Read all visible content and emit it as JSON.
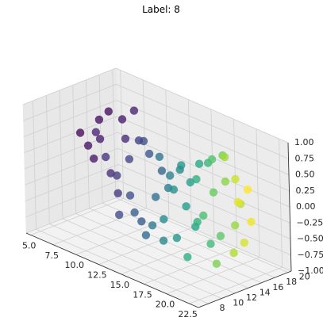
{
  "chart_data": {
    "type": "scatter",
    "projection": "3d",
    "title": "Label: 8",
    "xlabel": "",
    "ylabel": "",
    "zlabel": "",
    "xlim": [
      4.5,
      23.5
    ],
    "ylim": [
      6.5,
      20.5
    ],
    "zlim": [
      -1.0,
      1.0
    ],
    "xticks": [
      "5.0",
      "7.5",
      "10.0",
      "12.5",
      "15.0",
      "17.5",
      "20.0",
      "22.5"
    ],
    "yticks": [
      "8",
      "10",
      "12",
      "14",
      "16",
      "18",
      "20"
    ],
    "zticks": [
      "−1.00",
      "−0.75",
      "−0.50",
      "−0.25",
      "0.00",
      "0.25",
      "0.50",
      "0.75",
      "1.00"
    ],
    "colormap": "viridis",
    "grid": true,
    "pane_color": "#f2f2f2",
    "grid_color": "#cfcfcf",
    "points_note": "approximate reading",
    "points": [
      {
        "x": 5.2,
        "y": 14.0,
        "z": 0.3,
        "c": 0.02
      },
      {
        "x": 5.6,
        "y": 14.6,
        "z": 0.1,
        "c": 0.05
      },
      {
        "x": 5.9,
        "y": 15.0,
        "z": -0.1,
        "c": 0.06
      },
      {
        "x": 6.2,
        "y": 15.6,
        "z": 0.2,
        "c": 0.08
      },
      {
        "x": 6.6,
        "y": 15.0,
        "z": 0.55,
        "c": 0.04
      },
      {
        "x": 6.8,
        "y": 14.2,
        "z": 0.4,
        "c": 0.1
      },
      {
        "x": 7.0,
        "y": 16.0,
        "z": -0.3,
        "c": 0.12
      },
      {
        "x": 7.3,
        "y": 15.5,
        "z": 0.7,
        "c": 0.03
      },
      {
        "x": 7.6,
        "y": 14.5,
        "z": 0.05,
        "c": 0.14
      },
      {
        "x": 7.9,
        "y": 15.8,
        "z": -0.55,
        "c": 0.16
      },
      {
        "x": 8.2,
        "y": 16.3,
        "z": 0.6,
        "c": 0.07
      },
      {
        "x": 8.5,
        "y": 14.9,
        "z": -0.2,
        "c": 0.18
      },
      {
        "x": 8.8,
        "y": 15.9,
        "z": 0.35,
        "c": 0.11
      },
      {
        "x": 9.1,
        "y": 14.3,
        "z": -0.75,
        "c": 0.22
      },
      {
        "x": 9.4,
        "y": 16.5,
        "z": 0.8,
        "c": 0.09
      },
      {
        "x": 9.7,
        "y": 15.2,
        "z": -0.45,
        "c": 0.24
      },
      {
        "x": 10.0,
        "y": 14.8,
        "z": 0.15,
        "c": 0.2
      },
      {
        "x": 10.3,
        "y": 16.0,
        "z": -0.85,
        "c": 0.28
      },
      {
        "x": 10.6,
        "y": 15.5,
        "z": 0.45,
        "c": 0.19
      },
      {
        "x": 10.9,
        "y": 14.2,
        "z": -0.6,
        "c": 0.3
      },
      {
        "x": 11.2,
        "y": 16.2,
        "z": 0.25,
        "c": 0.26
      },
      {
        "x": 11.5,
        "y": 15.0,
        "z": -0.95,
        "c": 0.34
      },
      {
        "x": 11.8,
        "y": 14.6,
        "z": 0.55,
        "c": 0.23
      },
      {
        "x": 12.1,
        "y": 15.8,
        "z": -0.35,
        "c": 0.36
      },
      {
        "x": 12.4,
        "y": 16.4,
        "z": 0.05,
        "c": 0.32
      },
      {
        "x": 12.7,
        "y": 14.4,
        "z": -0.7,
        "c": 0.4
      },
      {
        "x": 13.0,
        "y": 15.3,
        "z": 0.35,
        "c": 0.38
      },
      {
        "x": 13.3,
        "y": 16.1,
        "z": -0.15,
        "c": 0.42
      },
      {
        "x": 13.6,
        "y": 14.8,
        "z": -0.9,
        "c": 0.46
      },
      {
        "x": 13.9,
        "y": 15.6,
        "z": 0.1,
        "c": 0.44
      },
      {
        "x": 14.2,
        "y": 14.1,
        "z": -0.5,
        "c": 0.48
      },
      {
        "x": 14.5,
        "y": 16.3,
        "z": 0.2,
        "c": 0.47
      },
      {
        "x": 14.8,
        "y": 15.2,
        "z": -0.8,
        "c": 0.52
      },
      {
        "x": 15.1,
        "y": 14.5,
        "z": 0.0,
        "c": 0.5
      },
      {
        "x": 15.4,
        "y": 15.9,
        "z": -0.3,
        "c": 0.54
      },
      {
        "x": 15.7,
        "y": 14.9,
        "z": 0.4,
        "c": 0.51
      },
      {
        "x": 16.0,
        "y": 16.4,
        "z": -0.6,
        "c": 0.58
      },
      {
        "x": 16.3,
        "y": 15.4,
        "z": 0.15,
        "c": 0.56
      },
      {
        "x": 16.6,
        "y": 14.3,
        "z": -0.95,
        "c": 0.62
      },
      {
        "x": 16.9,
        "y": 16.0,
        "z": 0.45,
        "c": 0.59
      },
      {
        "x": 17.2,
        "y": 15.1,
        "z": -0.4,
        "c": 0.64
      },
      {
        "x": 17.5,
        "y": 14.7,
        "z": 0.3,
        "c": 0.63
      },
      {
        "x": 17.8,
        "y": 16.2,
        "z": -0.75,
        "c": 0.68
      },
      {
        "x": 18.1,
        "y": 15.7,
        "z": 0.55,
        "c": 0.66
      },
      {
        "x": 18.4,
        "y": 14.4,
        "z": -0.2,
        "c": 0.7
      },
      {
        "x": 18.7,
        "y": 15.5,
        "z": 0.65,
        "c": 0.72
      },
      {
        "x": 19.0,
        "y": 16.1,
        "z": -0.55,
        "c": 0.74
      },
      {
        "x": 19.3,
        "y": 14.8,
        "z": 0.2,
        "c": 0.76
      },
      {
        "x": 19.6,
        "y": 15.9,
        "z": 0.75,
        "c": 0.78
      },
      {
        "x": 19.9,
        "y": 14.2,
        "z": -0.85,
        "c": 0.8
      },
      {
        "x": 20.2,
        "y": 15.4,
        "z": 0.4,
        "c": 0.82
      },
      {
        "x": 20.5,
        "y": 16.3,
        "z": -0.3,
        "c": 0.84
      },
      {
        "x": 20.8,
        "y": 14.6,
        "z": 0.85,
        "c": 0.86
      },
      {
        "x": 21.1,
        "y": 15.2,
        "z": -0.65,
        "c": 0.88
      },
      {
        "x": 21.4,
        "y": 16.0,
        "z": 0.1,
        "c": 0.9
      },
      {
        "x": 21.7,
        "y": 14.9,
        "z": 0.55,
        "c": 0.92
      },
      {
        "x": 22.0,
        "y": 15.6,
        "z": -0.45,
        "c": 0.94
      },
      {
        "x": 22.3,
        "y": 14.4,
        "z": 0.25,
        "c": 0.96
      },
      {
        "x": 22.6,
        "y": 15.9,
        "z": -0.1,
        "c": 0.98
      },
      {
        "x": 22.9,
        "y": 15.1,
        "z": 0.45,
        "c": 1.0
      }
    ]
  }
}
